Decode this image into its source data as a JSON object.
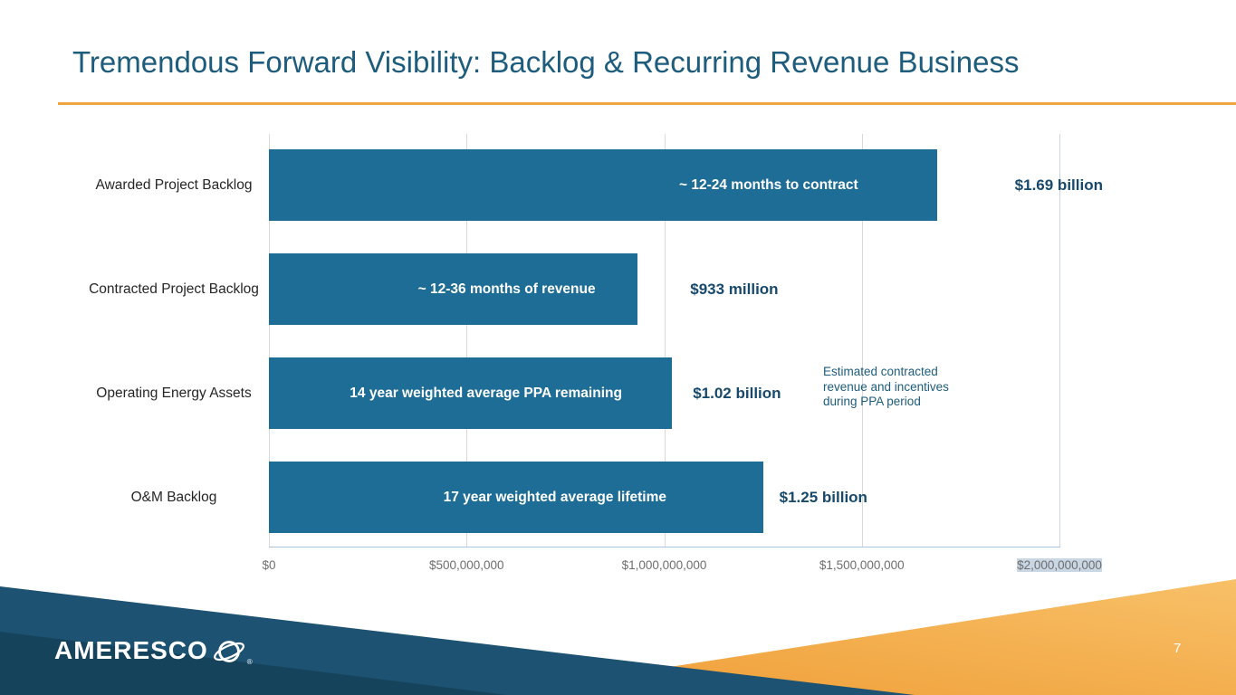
{
  "slide": {
    "title": "Tremendous Forward Visibility: Backlog & Recurring Revenue Business",
    "page_number": "7"
  },
  "footer": {
    "logo_text": "AMERESCO",
    "registered_mark": "®"
  },
  "chart_data": {
    "type": "bar",
    "orientation": "horizontal",
    "title": "",
    "xlabel": "",
    "ylabel": "",
    "xlim": [
      0,
      2000000000
    ],
    "x_ticks": [
      "$0",
      "$500,000,000",
      "$1,000,000,000",
      "$1,500,000,000",
      "$2,000,000,000"
    ],
    "gridlines": true,
    "legend": "none",
    "categories": [
      "Awarded Project Backlog",
      "Contracted Project Backlog",
      "Operating Energy Assets",
      "O&M Backlog"
    ],
    "values": [
      1690000000,
      933000000,
      1020000000,
      1250000000
    ],
    "bar_labels": [
      "~ 12-24 months to contract",
      "~ 12-36 months of revenue",
      "14 year weighted average PPA remaining",
      "17 year weighted average lifetime"
    ],
    "value_labels": [
      "$1.69 billion",
      "$933 million",
      "$1.02 billion",
      "$1.25 billion"
    ],
    "annotation": "Estimated contracted revenue and incentives during PPA period",
    "bar_color": "#1e6d96",
    "value_label_color": "#17496d"
  },
  "colors": {
    "title": "#1d5c7d",
    "title_rule": "#eda63f",
    "footer_navy": "#1d5272",
    "footer_navy_dark": "#16435c",
    "footer_orange": "#f3a73f",
    "footer_orange_light": "#f8c068"
  }
}
